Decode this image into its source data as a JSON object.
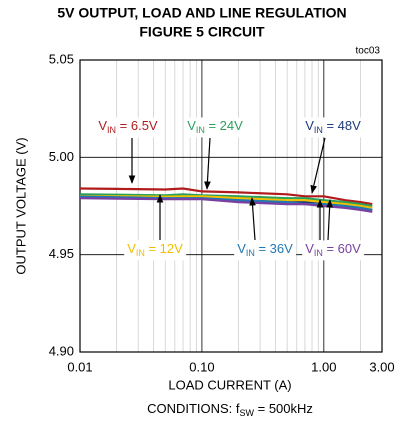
{
  "chart_data": {
    "type": "line",
    "title": [
      "5V OUTPUT, LOAD AND LINE REGULATION",
      "FIGURE 5 CIRCUIT"
    ],
    "corner_label": "toc03",
    "x_label": "LOAD CURRENT (A)",
    "y_label": "OUTPUT VOLTAGE  (V)",
    "conditions": [
      "CONDITIONS: f",
      "SW",
      " = 500kHz"
    ],
    "x_log": true,
    "grid": true,
    "xlim": [
      0.01,
      3
    ],
    "ylim": [
      4.9,
      5.05
    ],
    "xticks": [
      0.01,
      {
        "value": 0.1,
        "label": "0.10"
      },
      {
        "value": 1,
        "label": "1.00"
      },
      {
        "value": 3,
        "label": "3.00"
      }
    ],
    "yticks": [
      {
        "value": 4.9,
        "label": "4.90"
      },
      4.95,
      {
        "value": 5,
        "label": "5.00"
      },
      5.05
    ],
    "x": [
      0.01,
      0.02,
      0.05,
      0.07,
      0.1,
      0.2,
      0.5,
      0.7,
      1,
      1.5,
      2,
      2.5
    ],
    "series": [
      {
        "name_parts": [
          "V",
          "IN",
          " = 6.5V"
        ],
        "color": "#b01c1c",
        "values": [
          4.984,
          4.9838,
          4.9835,
          4.984,
          4.9825,
          4.982,
          4.981,
          4.98,
          4.98,
          4.978,
          4.977,
          4.976
        ]
      },
      {
        "name_parts": [
          "V",
          "IN",
          " = 24V"
        ],
        "color": "#2ca05a",
        "values": [
          4.981,
          4.9808,
          4.9805,
          4.981,
          4.9805,
          4.98,
          4.979,
          4.979,
          4.978,
          4.977,
          4.976,
          4.975
        ]
      },
      {
        "name_parts": [
          "V",
          "IN",
          " = 48V"
        ],
        "color": "#1f3a7a",
        "values": [
          4.98,
          4.9798,
          4.9795,
          4.979,
          4.979,
          4.978,
          4.977,
          4.977,
          4.976,
          4.975,
          4.974,
          4.973
        ]
      },
      {
        "name_parts": [
          "V",
          "IN",
          " = 12V"
        ],
        "color": "#f0c000",
        "values": [
          4.98,
          4.98,
          4.9798,
          4.98,
          4.98,
          4.979,
          4.978,
          4.978,
          4.977,
          4.976,
          4.975,
          4.974
        ]
      },
      {
        "name_parts": [
          "V",
          "IN",
          " = 36V"
        ],
        "color": "#1f78b4",
        "values": [
          4.9798,
          4.9795,
          4.979,
          4.979,
          4.979,
          4.978,
          4.977,
          4.976,
          4.976,
          4.975,
          4.974,
          4.973
        ]
      },
      {
        "name_parts": [
          "V",
          "IN",
          " = 60V"
        ],
        "color": "#7b3fa0",
        "values": [
          4.979,
          4.9788,
          4.9785,
          4.9785,
          4.9785,
          4.977,
          4.976,
          4.976,
          4.975,
          4.974,
          4.973,
          4.972
        ]
      }
    ]
  }
}
